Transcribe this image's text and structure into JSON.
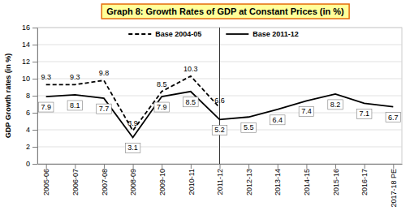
{
  "chart_data": {
    "type": "line",
    "title": "Graph 8: Growth Rates of GDP at Constant Prices (in %)",
    "y_label": "GDP Growth rates (in %)",
    "categories": [
      "2005-06",
      "2006-07",
      "2007-08",
      "2008-09",
      "2009-10",
      "2010-11",
      "2011-12",
      "2012-13",
      "2013-14",
      "2014-15",
      "2015-16",
      "2016-17",
      "2017-18 PE"
    ],
    "series": [
      {
        "name": "Base 2004-05",
        "color": "#000000",
        "line_style": "dashed",
        "values": [
          9.3,
          9.3,
          9.8,
          3.9,
          8.5,
          10.3,
          6.6,
          null,
          null,
          null,
          null,
          null,
          null
        ]
      },
      {
        "name": "Base 2011-12",
        "color": "#000000",
        "line_style": "solid",
        "values": [
          7.9,
          8.1,
          7.7,
          3.1,
          7.9,
          8.5,
          5.2,
          5.5,
          6.4,
          7.4,
          8.2,
          7.1,
          6.7
        ]
      }
    ],
    "ylim": [
      0,
      16
    ],
    "yticks": [
      0,
      2,
      4,
      6,
      8,
      10,
      12,
      14,
      16
    ],
    "grid": true,
    "legend": "top",
    "data_labels": true
  }
}
